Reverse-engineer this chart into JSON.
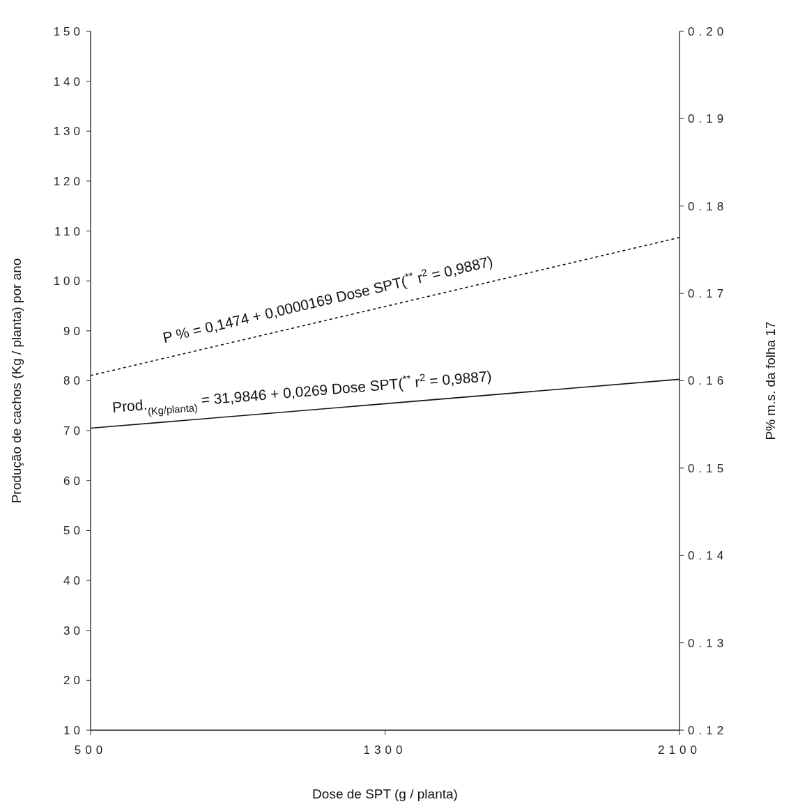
{
  "chart_data": {
    "type": "line",
    "xlabel": "Dose de SPT (g / planta)",
    "ylabel": "Produção de cachos (Kg / planta) por ano",
    "y2label": "P% m.s. da folha 17",
    "x": [
      500,
      2100
    ],
    "xlim": [
      500,
      2100
    ],
    "xticks": [
      500,
      1300,
      2100
    ],
    "ylim": [
      10,
      150
    ],
    "yticks": [
      10,
      20,
      30,
      40,
      50,
      60,
      70,
      80,
      90,
      100,
      110,
      120,
      130,
      140,
      150
    ],
    "y2lim": [
      0.12,
      0.2
    ],
    "y2ticks": [
      {
        "value": 0.12,
        "label": "0.12"
      },
      {
        "value": 0.13,
        "label": "0.13"
      },
      {
        "value": 0.14,
        "label": "0.14"
      },
      {
        "value": 0.15,
        "label": "0.15"
      },
      {
        "value": 0.16,
        "label": "0.16"
      },
      {
        "value": 0.17,
        "label": "0.17"
      },
      {
        "value": 0.18,
        "label": "0.18"
      },
      {
        "value": 0.19,
        "label": "0.19"
      },
      {
        "value": 0.2,
        "label": "0.20"
      }
    ],
    "series": [
      {
        "color": "#111111",
        "values": [
          70.5,
          80.3
        ],
        "line_style": "solid"
      },
      {
        "color": "#111111",
        "values": [
          0.1606,
          0.1764
        ],
        "axis": "y2",
        "line_style": "dashed"
      }
    ],
    "annotations": [
      "P % = 0,1474 + 0,0000169 Dose SPT($^{**}$ r$^{2}$ = 0,9887)",
      "Prod.$_{(Kg/planta)}$ = 31,9846 + 0,0269 Dose SPT($^{**}$ r$^{2}$ = 0,9887)"
    ],
    "grid": false
  }
}
